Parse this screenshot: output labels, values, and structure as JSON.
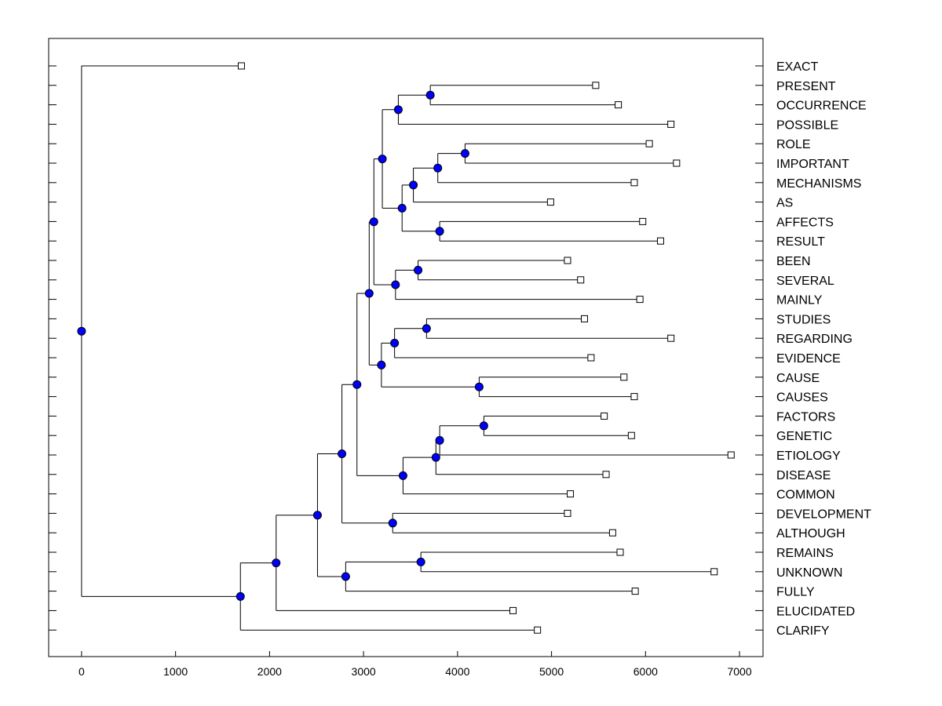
{
  "chart_data": {
    "type": "dendrogram",
    "title": "",
    "xlabel": "",
    "ylabel": "",
    "xlim": [
      -350,
      7250
    ],
    "xticks": [
      0,
      1000,
      2000,
      3000,
      4000,
      5000,
      6000,
      7000
    ],
    "grid": false,
    "leaf_marker_color": "#ffffff",
    "node_marker_color": "#0000ff",
    "leaves": [
      {
        "label": "EXACT",
        "value": 1700
      },
      {
        "label": "PRESENT",
        "value": 5470
      },
      {
        "label": "OCCURRENCE",
        "value": 5710
      },
      {
        "label": "POSSIBLE",
        "value": 6270
      },
      {
        "label": "ROLE",
        "value": 6040
      },
      {
        "label": "IMPORTANT",
        "value": 6330
      },
      {
        "label": "MECHANISMS",
        "value": 5880
      },
      {
        "label": "AS",
        "value": 4990
      },
      {
        "label": "AFFECTS",
        "value": 5970
      },
      {
        "label": "RESULT",
        "value": 6160
      },
      {
        "label": "BEEN",
        "value": 5170
      },
      {
        "label": "SEVERAL",
        "value": 5310
      },
      {
        "label": "MAINLY",
        "value": 5940
      },
      {
        "label": "STUDIES",
        "value": 5350
      },
      {
        "label": "REGARDING",
        "value": 6270
      },
      {
        "label": "EVIDENCE",
        "value": 5420
      },
      {
        "label": "CAUSE",
        "value": 5770
      },
      {
        "label": "CAUSES",
        "value": 5880
      },
      {
        "label": "FACTORS",
        "value": 5560
      },
      {
        "label": "GENETIC",
        "value": 5850
      },
      {
        "label": "ETIOLOGY",
        "value": 6910
      },
      {
        "label": "DISEASE",
        "value": 5580
      },
      {
        "label": "COMMON",
        "value": 5200
      },
      {
        "label": "DEVELOPMENT",
        "value": 5170
      },
      {
        "label": "ALTHOUGH",
        "value": 5650
      },
      {
        "label": "REMAINS",
        "value": 5730
      },
      {
        "label": "UNKNOWN",
        "value": 6730
      },
      {
        "label": "FULLY",
        "value": 5890
      },
      {
        "label": "ELUCIDATED",
        "value": 4590
      },
      {
        "label": "CLARIFY",
        "value": 4850
      }
    ],
    "merges": [
      {
        "id": "m1",
        "value": 3710,
        "children": [
          "PRESENT",
          "OCCURRENCE"
        ]
      },
      {
        "id": "m2",
        "value": 3370,
        "children": [
          "m1",
          "POSSIBLE"
        ]
      },
      {
        "id": "m3",
        "value": 4080,
        "children": [
          "ROLE",
          "IMPORTANT"
        ]
      },
      {
        "id": "m4",
        "value": 3790,
        "children": [
          "m3",
          "MECHANISMS"
        ]
      },
      {
        "id": "m5",
        "value": 3530,
        "children": [
          "m4",
          "AS"
        ]
      },
      {
        "id": "m6",
        "value": 3810,
        "children": [
          "AFFECTS",
          "RESULT"
        ]
      },
      {
        "id": "m7",
        "value": 3410,
        "children": [
          "m5",
          "m6"
        ]
      },
      {
        "id": "m8",
        "value": 3200,
        "children": [
          "m2",
          "m7"
        ]
      },
      {
        "id": "m9",
        "value": 3580,
        "children": [
          "BEEN",
          "SEVERAL"
        ]
      },
      {
        "id": "m10",
        "value": 3340,
        "children": [
          "m9",
          "MAINLY"
        ]
      },
      {
        "id": "m11",
        "value": 3110,
        "children": [
          "m8",
          "m10"
        ]
      },
      {
        "id": "m12",
        "value": 3670,
        "children": [
          "STUDIES",
          "REGARDING"
        ]
      },
      {
        "id": "m13",
        "value": 3330,
        "children": [
          "m12",
          "EVIDENCE"
        ]
      },
      {
        "id": "m14",
        "value": 4230,
        "children": [
          "CAUSE",
          "CAUSES"
        ]
      },
      {
        "id": "m15",
        "value": 3190,
        "children": [
          "m13",
          "m14"
        ]
      },
      {
        "id": "m16",
        "value": 3060,
        "children": [
          "m11",
          "m15"
        ]
      },
      {
        "id": "m17",
        "value": 4280,
        "children": [
          "FACTORS",
          "GENETIC"
        ]
      },
      {
        "id": "m18",
        "value": 3810,
        "children": [
          "m17",
          "ETIOLOGY"
        ]
      },
      {
        "id": "m19",
        "value": 3770,
        "children": [
          "m18",
          "DISEASE"
        ]
      },
      {
        "id": "m20",
        "value": 3420,
        "children": [
          "m19",
          "COMMON"
        ]
      },
      {
        "id": "m21",
        "value": 2930,
        "children": [
          "m16",
          "m20"
        ]
      },
      {
        "id": "m22",
        "value": 3310,
        "children": [
          "DEVELOPMENT",
          "ALTHOUGH"
        ]
      },
      {
        "id": "m23",
        "value": 2770,
        "children": [
          "m21",
          "m22"
        ]
      },
      {
        "id": "m24",
        "value": 3610,
        "children": [
          "REMAINS",
          "UNKNOWN"
        ]
      },
      {
        "id": "m25",
        "value": 2810,
        "children": [
          "m24",
          "FULLY"
        ]
      },
      {
        "id": "m26",
        "value": 2510,
        "children": [
          "m23",
          "m25"
        ]
      },
      {
        "id": "m27",
        "value": 2070,
        "children": [
          "m26",
          "ELUCIDATED"
        ]
      },
      {
        "id": "m28",
        "value": 1690,
        "children": [
          "m27",
          "CLARIFY"
        ]
      },
      {
        "id": "m29",
        "value": 0,
        "children": [
          "EXACT",
          "m28"
        ]
      }
    ]
  }
}
